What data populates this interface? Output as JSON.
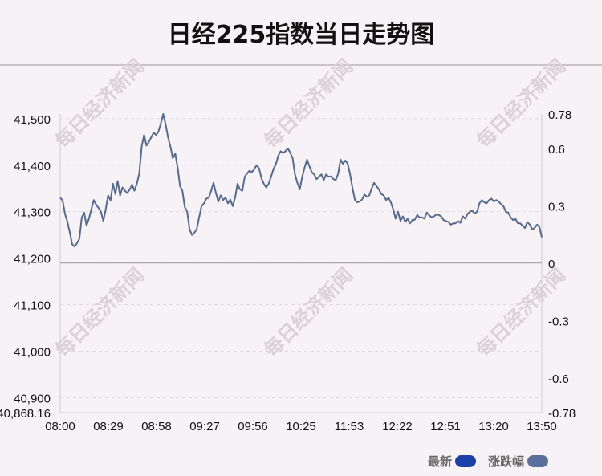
{
  "title": "日经225指数当日走势图",
  "colors": {
    "line": "#56698f",
    "latest": "#1d3faa",
    "change": "#5a6f9a",
    "watermark": "#d9d2d6"
  },
  "watermark_text": "每日经济新闻",
  "legend": {
    "latest_label": "最新",
    "change_label": "涨跌幅"
  },
  "chart_data": {
    "type": "line",
    "title": "日经225指数当日走势图",
    "x_ticks": [
      "08:00",
      "08:29",
      "08:58",
      "09:27",
      "09:56",
      "10:25",
      "11:53",
      "12:22",
      "12:51",
      "13:20",
      "13:50"
    ],
    "y_left_ticks": [
      "41,500",
      "41,400",
      "41,300",
      "41,200",
      "41,100",
      "41,000",
      "40,900",
      "40,868.16"
    ],
    "y_left_values": [
      41500,
      41400,
      41300,
      41200,
      41100,
      41000,
      40900,
      40868.16
    ],
    "y_left_range": [
      40868.16,
      41510
    ],
    "y_right_ticks": [
      "0.78",
      "0.6",
      "0.3",
      "0",
      "-0.3",
      "-0.6",
      "-0.78"
    ],
    "y_right_range": [
      -0.78,
      0.78
    ],
    "baseline": 41190,
    "series": [
      {
        "values": [
          41330,
          41324,
          41295,
          41278,
          41256,
          41230,
          41225,
          41232,
          41242,
          41288,
          41298,
          41270,
          41285,
          41305,
          41325,
          41315,
          41308,
          41300,
          41280,
          41305,
          41335,
          41324,
          41360,
          41338,
          41366,
          41335,
          41352,
          41345,
          41340,
          41348,
          41358,
          41345,
          41360,
          41382,
          41440,
          41465,
          41442,
          41450,
          41460,
          41470,
          41465,
          41472,
          41490,
          41510,
          41488,
          41460,
          41440,
          41415,
          41425,
          41395,
          41355,
          41345,
          41310,
          41300,
          41262,
          41250,
          41255,
          41262,
          41288,
          41312,
          41318,
          41328,
          41330,
          41345,
          41362,
          41340,
          41322,
          41335,
          41325,
          41330,
          41318,
          41326,
          41312,
          41330,
          41360,
          41348,
          41345,
          41375,
          41382,
          41388,
          41385,
          41392,
          41400,
          41393,
          41372,
          41360,
          41352,
          41360,
          41375,
          41392,
          41402,
          41420,
          41430,
          41426,
          41430,
          41436,
          41427,
          41415,
          41380,
          41362,
          41348,
          41375,
          41395,
          41412,
          41398,
          41385,
          41380,
          41370,
          41375,
          41380,
          41368,
          41380,
          41375,
          41376,
          41370,
          41368,
          41382,
          41412,
          41403,
          41410,
          41403,
          41380,
          41350,
          41325,
          41320,
          41322,
          41326,
          41337,
          41332,
          41335,
          41350,
          41362,
          41355,
          41348,
          41338,
          41335,
          41325,
          41330,
          41320,
          41305,
          41285,
          41300,
          41280,
          41290,
          41278,
          41285,
          41275,
          41282,
          41283,
          41293,
          41287,
          41288,
          41285,
          41298,
          41292,
          41288,
          41290,
          41294,
          41293,
          41290,
          41282,
          41280,
          41278,
          41272,
          41275,
          41275,
          41280,
          41276,
          41290,
          41285,
          41295,
          41300,
          41302,
          41296,
          41300,
          41318,
          41325,
          41320,
          41318,
          41325,
          41328,
          41322,
          41325,
          41322,
          41316,
          41312,
          41300,
          41298,
          41288,
          41282,
          41285,
          41275,
          41275,
          41270,
          41265,
          41278,
          41272,
          41262,
          41265,
          41272,
          41268,
          41245
        ]
      }
    ]
  }
}
